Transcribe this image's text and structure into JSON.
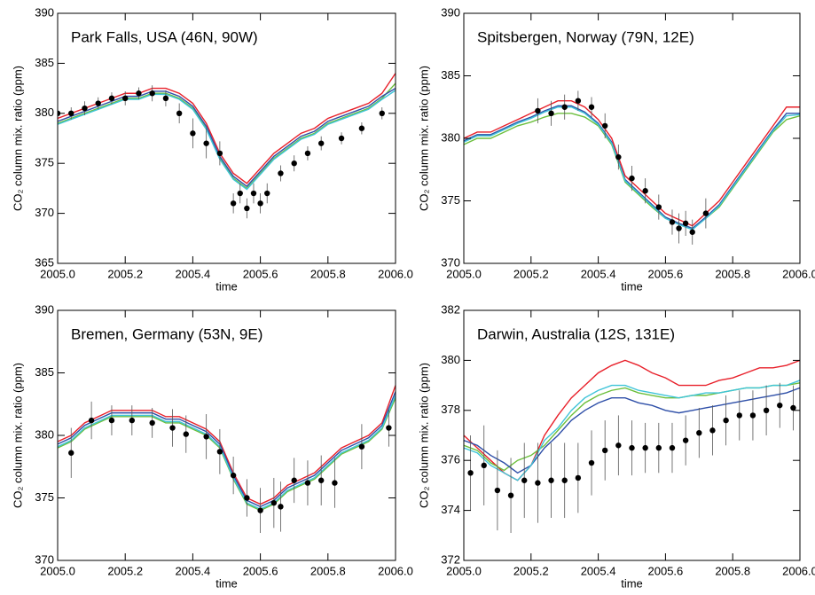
{
  "chart_data": [
    {
      "type": "line",
      "title": "Park Falls, USA (46N, 90W)",
      "xlabel": "time",
      "ylabel": "CO₂ column mix. ratio (ppm)",
      "xlim": [
        2005.0,
        2006.0
      ],
      "xticks": [
        {
          "value": 2005.0,
          "label": "2005.0"
        },
        2005.2,
        2005.4,
        2005.6,
        2005.8,
        {
          "value": 2006.0,
          "label": "2006.0"
        }
      ],
      "ylim": [
        365,
        390
      ],
      "yticks": [
        365,
        370,
        375,
        380,
        385,
        390
      ],
      "x": [
        2005.0,
        2005.04,
        2005.08,
        2005.12,
        2005.16,
        2005.2,
        2005.24,
        2005.28,
        2005.32,
        2005.36,
        2005.4,
        2005.44,
        2005.48,
        2005.52,
        2005.56,
        2005.6,
        2005.64,
        2005.68,
        2005.72,
        2005.76,
        2005.8,
        2005.84,
        2005.88,
        2005.92,
        2005.96,
        2006.0
      ],
      "series": [
        {
          "color": "#e8202a",
          "values": [
            379.5,
            380,
            380.5,
            381,
            381.5,
            382,
            382,
            382.5,
            382.5,
            382,
            381,
            379,
            376,
            374,
            373,
            374.5,
            376,
            377,
            378,
            378.5,
            379.5,
            380,
            380.5,
            381,
            382,
            384
          ]
        },
        {
          "color": "#6cbf3c",
          "values": [
            379,
            379.5,
            380,
            380.5,
            381,
            381.5,
            381.5,
            382,
            382,
            381.5,
            380.5,
            378.5,
            375.5,
            373.5,
            372.5,
            374,
            375.5,
            376.5,
            377.5,
            378,
            379,
            379.5,
            380,
            380.5,
            381.5,
            383
          ]
        },
        {
          "color": "#2e4fa8",
          "values": [
            379.2,
            379.7,
            380.2,
            380.7,
            381.2,
            381.7,
            381.7,
            382.2,
            382.2,
            381.7,
            380.7,
            378.7,
            375.7,
            373.7,
            372.7,
            374.2,
            375.7,
            376.7,
            377.7,
            378.2,
            379.2,
            379.7,
            380.2,
            380.7,
            381.7,
            382.5
          ]
        },
        {
          "color": "#3fc4d8",
          "values": [
            378.9,
            379.4,
            379.9,
            380.4,
            380.9,
            381.4,
            381.4,
            381.9,
            381.9,
            381.4,
            380.4,
            378.4,
            375.4,
            373.4,
            372.4,
            373.9,
            375.4,
            376.4,
            377.4,
            377.9,
            378.9,
            379.4,
            379.9,
            380.4,
            381.4,
            382.3
          ]
        }
      ],
      "points": {
        "color": "#000000",
        "x": [
          2005.0,
          2005.04,
          2005.08,
          2005.12,
          2005.16,
          2005.2,
          2005.24,
          2005.28,
          2005.32,
          2005.36,
          2005.4,
          2005.44,
          2005.48,
          2005.52,
          2005.54,
          2005.56,
          2005.58,
          2005.6,
          2005.62,
          2005.66,
          2005.7,
          2005.74,
          2005.78,
          2005.84,
          2005.9,
          2005.96
        ],
        "values": [
          380,
          380,
          380.5,
          381,
          381.5,
          381.5,
          382,
          382,
          381.5,
          380,
          378,
          377,
          376,
          371,
          372,
          370.5,
          372,
          371,
          372,
          374,
          375,
          376,
          377,
          377.5,
          378.5,
          380
        ],
        "errors": [
          0.6,
          0.6,
          0.7,
          0.6,
          0.6,
          0.7,
          0.6,
          0.8,
          0.8,
          1,
          1.5,
          1.5,
          1.2,
          1,
          1,
          1,
          1,
          1,
          1,
          0.8,
          0.8,
          0.7,
          0.7,
          0.6,
          0.6,
          0.6
        ]
      }
    },
    {
      "type": "line",
      "title": "Spitsbergen, Norway (79N, 12E)",
      "xlabel": "time",
      "ylabel": "CO₂ column mix. ratio (ppm)",
      "xlim": [
        2005.0,
        2006.0
      ],
      "xticks": [
        {
          "value": 2005.0,
          "label": "2005.0"
        },
        2005.2,
        2005.4,
        2005.6,
        2005.8,
        {
          "value": 2006.0,
          "label": "2006.0"
        }
      ],
      "ylim": [
        370,
        390
      ],
      "yticks": [
        370,
        375,
        380,
        385,
        390
      ],
      "x": [
        2005.0,
        2005.04,
        2005.08,
        2005.12,
        2005.16,
        2005.2,
        2005.24,
        2005.28,
        2005.32,
        2005.36,
        2005.4,
        2005.44,
        2005.48,
        2005.52,
        2005.56,
        2005.6,
        2005.64,
        2005.68,
        2005.72,
        2005.76,
        2005.8,
        2005.84,
        2005.88,
        2005.92,
        2005.96,
        2006.0
      ],
      "series": [
        {
          "color": "#e8202a",
          "values": [
            380,
            380.5,
            380.5,
            381,
            381.5,
            382,
            382.5,
            383,
            383,
            382.5,
            381.5,
            380,
            377,
            376,
            375,
            374,
            373.5,
            373,
            374,
            375,
            376.5,
            378,
            379.5,
            381,
            382.5,
            382.5
          ]
        },
        {
          "color": "#6cbf3c",
          "values": [
            379.5,
            380,
            380,
            380.5,
            381,
            381.3,
            381.7,
            382,
            382,
            381.7,
            381,
            379.5,
            376.5,
            375.5,
            374.5,
            373.6,
            373.2,
            372.8,
            373.6,
            374.5,
            376,
            377.5,
            379,
            380.5,
            381.5,
            381.8
          ]
        },
        {
          "color": "#2e4fa8",
          "values": [
            379.8,
            380.3,
            380.3,
            380.8,
            381.3,
            381.7,
            382.2,
            382.6,
            382.6,
            382.1,
            381.2,
            379.7,
            376.7,
            375.7,
            374.7,
            373.7,
            373.2,
            372.8,
            373.7,
            374.7,
            376.2,
            377.7,
            379.2,
            380.7,
            382,
            382
          ]
        },
        {
          "color": "#3fc4d8",
          "values": [
            379.7,
            380.2,
            380.2,
            380.7,
            381.2,
            381.6,
            382.1,
            382.5,
            382.5,
            382,
            381.1,
            379.6,
            376.6,
            375.6,
            374.6,
            373.6,
            373.1,
            372.7,
            373.6,
            374.6,
            376.1,
            377.6,
            379.1,
            380.6,
            381.8,
            381.9
          ]
        }
      ],
      "points": {
        "color": "#000000",
        "x": [
          2005.22,
          2005.26,
          2005.3,
          2005.34,
          2005.38,
          2005.42,
          2005.46,
          2005.5,
          2005.54,
          2005.58,
          2005.62,
          2005.64,
          2005.66,
          2005.68,
          2005.72
        ],
        "values": [
          382.2,
          382,
          382.5,
          383,
          382.5,
          381,
          378.5,
          376.8,
          375.8,
          374.5,
          373.3,
          372.8,
          373.2,
          372.5,
          374
        ],
        "errors": [
          1,
          1,
          1,
          0.8,
          0.8,
          1,
          1,
          1,
          1,
          1,
          1,
          1.2,
          1,
          1,
          1.2
        ]
      }
    },
    {
      "type": "line",
      "title": "Bremen, Germany (53N, 9E)",
      "xlabel": "time",
      "ylabel": "CO₂ column mix. ratio (ppm)",
      "xlim": [
        2005.0,
        2006.0
      ],
      "xticks": [
        {
          "value": 2005.0,
          "label": "2005.0"
        },
        2005.2,
        2005.4,
        2005.6,
        2005.8,
        {
          "value": 2006.0,
          "label": "2006.0"
        }
      ],
      "ylim": [
        370,
        390
      ],
      "yticks": [
        370,
        375,
        380,
        385,
        390
      ],
      "x": [
        2005.0,
        2005.04,
        2005.08,
        2005.12,
        2005.16,
        2005.2,
        2005.24,
        2005.28,
        2005.32,
        2005.36,
        2005.4,
        2005.44,
        2005.48,
        2005.52,
        2005.56,
        2005.6,
        2005.64,
        2005.68,
        2005.72,
        2005.76,
        2005.8,
        2005.84,
        2005.88,
        2005.92,
        2005.96,
        2006.0
      ],
      "series": [
        {
          "color": "#e8202a",
          "values": [
            379.5,
            380,
            381,
            381.5,
            382,
            382,
            382,
            382,
            381.5,
            381.5,
            381,
            380.5,
            379.5,
            377,
            375,
            374.5,
            375,
            376,
            376.5,
            377,
            378,
            379,
            379.5,
            380,
            381,
            384
          ]
        },
        {
          "color": "#6cbf3c",
          "values": [
            379,
            379.5,
            380.5,
            381,
            381.5,
            381.5,
            381.5,
            381.5,
            381,
            381,
            380.5,
            380,
            379,
            376.5,
            374.5,
            374,
            374.5,
            375.5,
            376,
            376.5,
            377.5,
            378.5,
            379,
            379.5,
            380.5,
            383
          ]
        },
        {
          "color": "#2e4fa8",
          "values": [
            379.3,
            379.8,
            380.8,
            381.3,
            381.8,
            381.8,
            381.8,
            381.8,
            381.3,
            381.3,
            380.8,
            380.3,
            379.3,
            376.8,
            374.8,
            374.3,
            374.8,
            375.8,
            376.3,
            376.8,
            377.8,
            378.8,
            379.3,
            379.8,
            380.8,
            383.5
          ]
        },
        {
          "color": "#3fc4d8",
          "values": [
            379.1,
            379.6,
            380.6,
            381.1,
            381.6,
            381.6,
            381.6,
            381.6,
            381.1,
            381.1,
            380.6,
            380.1,
            379.1,
            376.6,
            374.6,
            374.1,
            374.6,
            375.6,
            376.1,
            376.6,
            377.6,
            378.6,
            379.1,
            379.6,
            380.6,
            383.2
          ]
        }
      ],
      "points": {
        "color": "#000000",
        "x": [
          2005.04,
          2005.1,
          2005.16,
          2005.22,
          2005.28,
          2005.34,
          2005.38,
          2005.44,
          2005.48,
          2005.52,
          2005.56,
          2005.6,
          2005.64,
          2005.66,
          2005.7,
          2005.74,
          2005.78,
          2005.82,
          2005.9,
          2005.98
        ],
        "values": [
          378.6,
          381.2,
          381.2,
          381.2,
          381,
          380.6,
          380.1,
          379.9,
          378.7,
          376.8,
          375,
          374,
          374.6,
          374.3,
          376.4,
          376.2,
          376.4,
          376.2,
          379.1,
          380.6
        ],
        "errors": [
          2,
          1.5,
          1.2,
          1.2,
          1.2,
          1.5,
          1.5,
          1.8,
          1.8,
          1.5,
          1.5,
          1.8,
          2,
          2,
          1.8,
          1.8,
          2,
          2,
          1.8,
          1.5
        ]
      }
    },
    {
      "type": "line",
      "title": "Darwin, Australia (12S, 131E)",
      "xlabel": "time",
      "ylabel": "CO₂ column mix. ratio (ppm)",
      "xlim": [
        2005.0,
        2006.0
      ],
      "xticks": [
        {
          "value": 2005.0,
          "label": "2005.0"
        },
        2005.2,
        2005.4,
        2005.6,
        2005.8,
        {
          "value": 2006.0,
          "label": "2006.0"
        }
      ],
      "ylim": [
        372,
        382
      ],
      "yticks": [
        372,
        374,
        376,
        378,
        380,
        382
      ],
      "x": [
        2005.0,
        2005.04,
        2005.08,
        2005.12,
        2005.16,
        2005.2,
        2005.24,
        2005.28,
        2005.32,
        2005.36,
        2005.4,
        2005.44,
        2005.48,
        2005.52,
        2005.56,
        2005.6,
        2005.64,
        2005.68,
        2005.72,
        2005.76,
        2005.8,
        2005.84,
        2005.88,
        2005.92,
        2005.96,
        2006.0
      ],
      "series": [
        {
          "color": "#e8202a",
          "values": [
            377,
            376.5,
            376,
            375.5,
            375.2,
            375.8,
            377,
            377.8,
            378.5,
            379,
            379.5,
            379.8,
            380,
            379.8,
            379.5,
            379.3,
            379,
            379,
            379,
            379.2,
            379.3,
            379.5,
            379.7,
            379.7,
            379.8,
            380
          ]
        },
        {
          "color": "#6cbf3c",
          "values": [
            376.6,
            376.4,
            375.9,
            375.6,
            376,
            376.2,
            376.6,
            377.2,
            377.8,
            378.3,
            378.6,
            378.8,
            378.9,
            378.7,
            378.6,
            378.5,
            378.5,
            378.6,
            378.6,
            378.7,
            378.8,
            378.9,
            378.9,
            379,
            379,
            379.1
          ]
        },
        {
          "color": "#2e4fa8",
          "values": [
            376.8,
            376.6,
            376.2,
            375.9,
            375.5,
            375.8,
            376.5,
            377,
            377.6,
            378,
            378.3,
            378.5,
            378.5,
            378.3,
            378.2,
            378,
            377.9,
            378,
            378.1,
            378.2,
            378.3,
            378.4,
            378.5,
            378.6,
            378.7,
            378.9
          ]
        },
        {
          "color": "#3fc4d8",
          "values": [
            376.5,
            376.3,
            375.8,
            375.5,
            375.2,
            375.8,
            376.8,
            377.3,
            378,
            378.5,
            378.8,
            379,
            379,
            378.8,
            378.7,
            378.6,
            378.5,
            378.6,
            378.7,
            378.7,
            378.8,
            378.9,
            378.9,
            379,
            379,
            379.2
          ]
        }
      ],
      "points": {
        "color": "#000000",
        "x": [
          2005.02,
          2005.06,
          2005.1,
          2005.14,
          2005.18,
          2005.22,
          2005.26,
          2005.3,
          2005.34,
          2005.38,
          2005.42,
          2005.46,
          2005.5,
          2005.54,
          2005.58,
          2005.62,
          2005.66,
          2005.7,
          2005.74,
          2005.78,
          2005.82,
          2005.86,
          2005.9,
          2005.94,
          2005.98
        ],
        "values": [
          375.5,
          375.8,
          374.8,
          374.6,
          375.2,
          375.1,
          375.2,
          375.2,
          375.3,
          375.9,
          376.4,
          376.6,
          376.5,
          376.5,
          376.5,
          376.5,
          376.8,
          377.1,
          377.2,
          377.6,
          377.8,
          377.8,
          378,
          378.2,
          378.1
        ],
        "errors": [
          1.5,
          1.6,
          1.6,
          1.5,
          1.5,
          1.6,
          1.5,
          1.5,
          1.4,
          1.3,
          1.2,
          1.2,
          1.1,
          1,
          1,
          1,
          1,
          1,
          1,
          1,
          1,
          1,
          1,
          0.9,
          0.9
        ]
      }
    }
  ]
}
